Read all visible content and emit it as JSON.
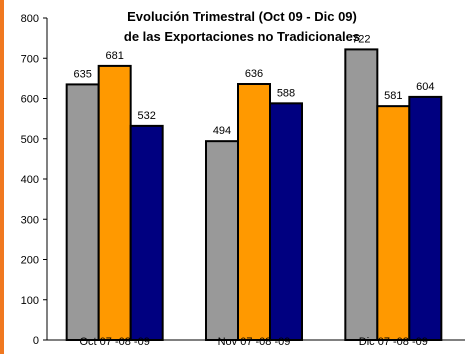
{
  "chart_data": {
    "type": "bar",
    "title_line1": "Evolución Trimestral  (Oct 09 - Dic 09)",
    "title_line2": "de las Exportaciones no Tradicionales",
    "categories": [
      "Oct 07 -08 -09",
      "Nov 07 -08 -09",
      "Dic 07 -08 -09"
    ],
    "series": [
      {
        "values": [
          635,
          494,
          722
        ],
        "color": "#999999"
      },
      {
        "values": [
          681,
          636,
          581
        ],
        "color": "#ff9900"
      },
      {
        "values": [
          532,
          588,
          604
        ],
        "color": "#000080"
      }
    ],
    "ylim": [
      0,
      800
    ],
    "yticks": [
      0,
      100,
      200,
      300,
      400,
      500,
      600,
      700,
      800
    ],
    "accent_color": "#f07820"
  }
}
